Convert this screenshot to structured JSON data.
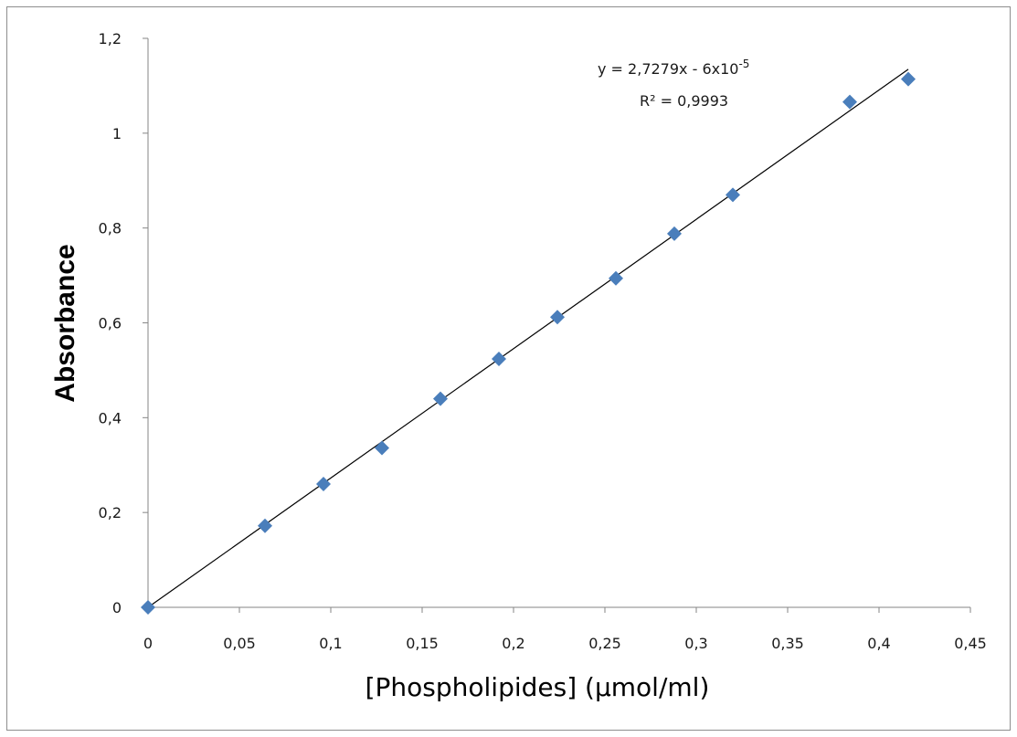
{
  "chart_data": {
    "type": "scatter",
    "xlabel": "[Phospholipides] (µmol/ml)",
    "ylabel": "Absorbance",
    "xlim": [
      0,
      0.45
    ],
    "ylim": [
      0,
      1.2
    ],
    "x_ticks": [
      "0",
      "0,05",
      "0,1",
      "0,15",
      "0,2",
      "0,25",
      "0,3",
      "0,35",
      "0,4",
      "0,45"
    ],
    "y_ticks": [
      "0",
      "0,2",
      "0,4",
      "0,6",
      "0,8",
      "1",
      "1,2"
    ],
    "marker_color": "#4a7ebb",
    "trendline_color": "#000000",
    "grid": false,
    "series": [
      {
        "x": [
          0,
          0.064,
          0.096,
          0.128,
          0.16,
          0.192,
          0.224,
          0.256,
          0.288,
          0.32,
          0.384,
          0.416
        ],
        "y": [
          0,
          0.172,
          0.26,
          0.336,
          0.44,
          0.524,
          0.612,
          0.694,
          0.788,
          0.87,
          1.066,
          1.114
        ]
      }
    ],
    "trendline": {
      "slope": 2.7279,
      "intercept": -6e-05,
      "x_range": [
        0,
        0.416
      ],
      "equation_main": "y = 2,7279x - 6x10",
      "equation_exp": "-5",
      "r_squared": "R² = 0,9993"
    }
  }
}
